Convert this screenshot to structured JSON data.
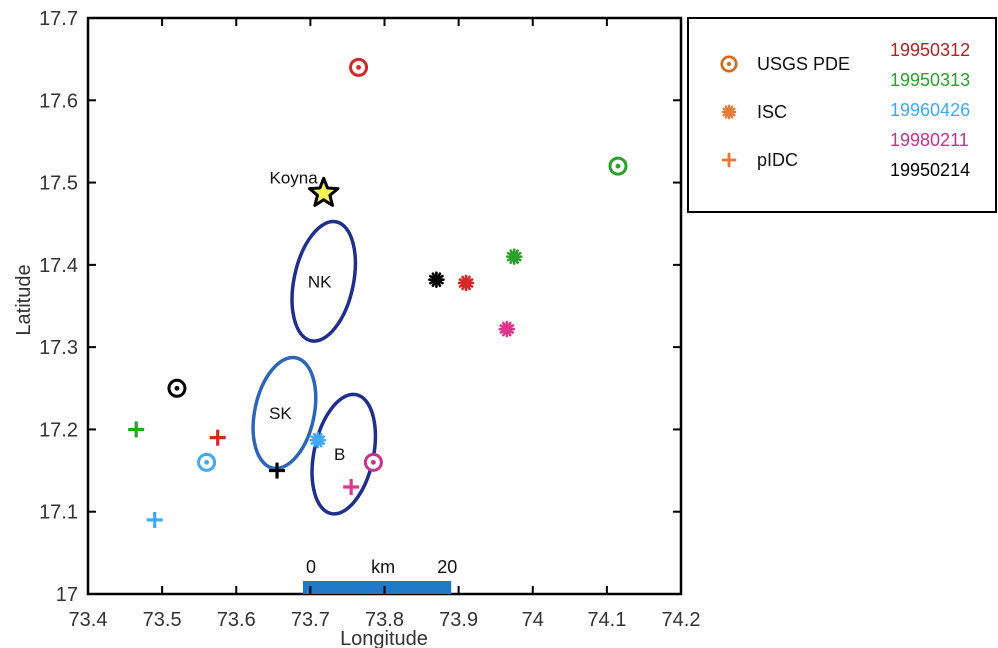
{
  "chart_data": {
    "type": "scatter",
    "title": "",
    "xlabel": "Longitude",
    "ylabel": "Latitude",
    "xlim": [
      73.4,
      74.2
    ],
    "ylim": [
      17.0,
      17.7
    ],
    "xticks": [
      "73.4",
      "73.5",
      "73.6",
      "73.7",
      "73.8",
      "73.9",
      "74",
      "74.1",
      "74.2"
    ],
    "yticks": [
      "17",
      "17.1",
      "17.2",
      "17.3",
      "17.4",
      "17.5",
      "17.6",
      "17.7"
    ],
    "grid": false,
    "legend_position": "outside-right",
    "legend_markers": [
      {
        "label": "USGS PDE",
        "marker": "circle-dot",
        "color": "#d2691e"
      },
      {
        "label": "ISC",
        "marker": "asterisk",
        "color": "#e07b39"
      },
      {
        "label": "pIDC",
        "marker": "plus",
        "color": "#e07b39"
      }
    ],
    "legend_events": [
      {
        "label": "19950312",
        "color": "#b22222"
      },
      {
        "label": "19950313",
        "color": "#2ca02c"
      },
      {
        "label": "19960426",
        "color": "#3fa9f5"
      },
      {
        "label": "19980211",
        "color": "#c2338f"
      },
      {
        "label": "19950214",
        "color": "#000000"
      }
    ],
    "series": [
      {
        "name": "USGS PDE",
        "marker": "circle-dot",
        "points": [
          {
            "x": 73.765,
            "y": 17.64,
            "color": "#d62728"
          },
          {
            "x": 74.115,
            "y": 17.52,
            "color": "#2ca02c"
          },
          {
            "x": 73.52,
            "y": 17.25,
            "color": "#000000"
          },
          {
            "x": 73.56,
            "y": 17.16,
            "color": "#3fa9f5"
          },
          {
            "x": 73.785,
            "y": 17.16,
            "color": "#c2338f"
          }
        ]
      },
      {
        "name": "ISC",
        "marker": "asterisk",
        "points": [
          {
            "x": 73.91,
            "y": 17.378,
            "color": "#d62728"
          },
          {
            "x": 73.975,
            "y": 17.41,
            "color": "#2ca02c"
          },
          {
            "x": 73.71,
            "y": 17.187,
            "color": "#3fa9f5"
          },
          {
            "x": 73.965,
            "y": 17.322,
            "color": "#e0358f"
          },
          {
            "x": 73.87,
            "y": 17.382,
            "color": "#000000"
          }
        ]
      },
      {
        "name": "pIDC",
        "marker": "plus",
        "points": [
          {
            "x": 73.575,
            "y": 17.19,
            "color": "#d62728"
          },
          {
            "x": 73.465,
            "y": 17.2,
            "color": "#2ca02c"
          },
          {
            "x": 73.49,
            "y": 17.09,
            "color": "#3fa9f5"
          },
          {
            "x": 73.755,
            "y": 17.13,
            "color": "#e0358f"
          },
          {
            "x": 73.655,
            "y": 17.15,
            "color": "#000000"
          }
        ]
      }
    ],
    "annotations": [
      {
        "label": "Koyna",
        "marker": "star",
        "x": 73.718,
        "y": 17.487,
        "color": "#f5f55a"
      },
      {
        "label": "NK",
        "shape": "ellipse",
        "cx": 73.718,
        "cy": 17.38,
        "rx_km": 4.0,
        "ry_km": 8.2,
        "tilt": 12,
        "color": "#1f2f8a"
      },
      {
        "label": "SK",
        "shape": "ellipse",
        "cx": 73.665,
        "cy": 17.22,
        "rx_km": 4.0,
        "ry_km": 7.6,
        "tilt": 12,
        "color": "#2b66b8"
      },
      {
        "label": "B",
        "shape": "ellipse",
        "cx": 73.745,
        "cy": 17.17,
        "rx_km": 4.0,
        "ry_km": 8.2,
        "tilt": 12,
        "color": "#1f2f8a"
      }
    ],
    "scale_bar": {
      "start_label": "0",
      "unit_label": "km",
      "end_label": "20",
      "x0": 73.69,
      "x1": 73.89,
      "color": "#1f78c8"
    }
  }
}
